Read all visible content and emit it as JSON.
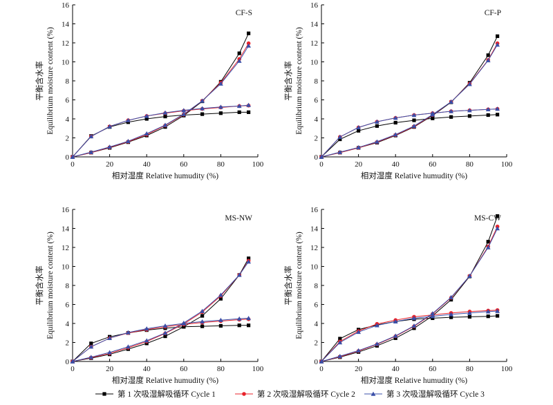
{
  "legend": {
    "items": [
      {
        "label": "第 1 次吸湿解吸循环 Cycle 1",
        "color": "#000000",
        "marker": "square"
      },
      {
        "label": "第 2 次吸湿解吸循环 Cycle 2",
        "color": "#e8222a",
        "marker": "circle"
      },
      {
        "label": "第 3 次吸湿解吸循环 Cycle 3",
        "color": "#3a4fa8",
        "marker": "triangle"
      }
    ]
  },
  "chart_data": [
    {
      "type": "line",
      "panel_label": "CF-S",
      "xlabel": "相对湿度 Relative humudity (%)",
      "ylabel_cn": "平衡含水率",
      "ylabel_en": "Equilibrium moisture content (%)",
      "xlim": [
        0,
        100
      ],
      "ylim": [
        0,
        16
      ],
      "xticks": [
        0,
        20,
        40,
        60,
        80,
        100
      ],
      "yticks": [
        0,
        2,
        4,
        6,
        8,
        10,
        12,
        14,
        16
      ],
      "x": [
        0,
        10,
        20,
        30,
        40,
        50,
        60,
        70,
        80,
        90,
        95
      ],
      "series": [
        {
          "name": "第 1 次吸湿解吸循环 Cycle 1",
          "branch": "adsorption",
          "values": [
            0,
            0.45,
            0.95,
            1.55,
            2.25,
            3.15,
            4.35,
            5.85,
            7.9,
            10.9,
            13.0
          ]
        },
        {
          "name": "第 1 次吸湿解吸循环 Cycle 1",
          "branch": "desorption",
          "values": [
            0,
            2.2,
            3.15,
            3.65,
            4.0,
            4.25,
            4.4,
            4.5,
            4.6,
            4.7,
            4.7
          ]
        },
        {
          "name": "第 2 次吸湿解吸循环 Cycle 2",
          "branch": "adsorption",
          "values": [
            0,
            0.45,
            1.0,
            1.6,
            2.35,
            3.3,
            4.45,
            5.9,
            7.8,
            10.3,
            11.95
          ]
        },
        {
          "name": "第 2 次吸湿解吸循环 Cycle 2",
          "branch": "desorption",
          "values": [
            0,
            2.15,
            3.2,
            3.85,
            4.3,
            4.6,
            4.85,
            5.05,
            5.2,
            5.35,
            5.4
          ]
        },
        {
          "name": "第 3 次吸湿解吸循环 Cycle 3",
          "branch": "adsorption",
          "values": [
            0,
            0.5,
            1.05,
            1.65,
            2.45,
            3.35,
            4.5,
            5.9,
            7.7,
            10.1,
            11.7
          ]
        },
        {
          "name": "第 3 次吸湿解吸循环 Cycle 3",
          "branch": "desorption",
          "values": [
            0,
            2.15,
            3.2,
            3.85,
            4.3,
            4.65,
            4.9,
            5.1,
            5.25,
            5.35,
            5.45
          ]
        }
      ]
    },
    {
      "type": "line",
      "panel_label": "CF-P",
      "xlabel": "相对湿度 Relative humudity (%)",
      "ylabel_cn": "平衡含水率",
      "ylabel_en": "Equilibrium moisture content (%)",
      "xlim": [
        0,
        100
      ],
      "ylim": [
        0,
        16
      ],
      "xticks": [
        0,
        20,
        40,
        60,
        80,
        100
      ],
      "yticks": [
        0,
        2,
        4,
        6,
        8,
        10,
        12,
        14,
        16
      ],
      "x": [
        0,
        10,
        20,
        30,
        40,
        50,
        60,
        70,
        80,
        90,
        95
      ],
      "series": [
        {
          "name": "第 1 次吸湿解吸循环 Cycle 1",
          "branch": "adsorption",
          "values": [
            0,
            0.45,
            0.95,
            1.5,
            2.25,
            3.15,
            4.35,
            5.75,
            7.8,
            10.7,
            12.7
          ]
        },
        {
          "name": "第 1 次吸湿解吸循环 Cycle 1",
          "branch": "desorption",
          "values": [
            0,
            1.85,
            2.75,
            3.25,
            3.6,
            3.85,
            4.05,
            4.2,
            4.3,
            4.4,
            4.45
          ]
        },
        {
          "name": "第 2 次吸湿解吸循环 Cycle 2",
          "branch": "adsorption",
          "values": [
            0,
            0.45,
            0.95,
            1.55,
            2.3,
            3.2,
            4.4,
            5.8,
            7.7,
            10.2,
            11.95
          ]
        },
        {
          "name": "第 2 次吸湿解吸循环 Cycle 2",
          "branch": "desorption",
          "values": [
            0,
            2.1,
            3.1,
            3.7,
            4.1,
            4.4,
            4.6,
            4.8,
            4.9,
            5.0,
            5.05
          ]
        },
        {
          "name": "第 3 次吸湿解吸循环 Cycle 3",
          "branch": "adsorption",
          "values": [
            0,
            0.5,
            1.0,
            1.6,
            2.35,
            3.25,
            4.45,
            5.8,
            7.65,
            10.15,
            11.8
          ]
        },
        {
          "name": "第 3 次吸湿解吸循环 Cycle 3",
          "branch": "desorption",
          "values": [
            0,
            2.1,
            3.1,
            3.7,
            4.1,
            4.4,
            4.6,
            4.8,
            4.9,
            5.0,
            5.05
          ]
        }
      ]
    },
    {
      "type": "line",
      "panel_label": "MS-NW",
      "xlabel": "相对湿度 Relative humudity (%)",
      "ylabel_cn": "平衡含水率",
      "ylabel_en": "Equilibrium moisture content (%)",
      "xlim": [
        0,
        100
      ],
      "ylim": [
        0,
        16
      ],
      "xticks": [
        0,
        20,
        40,
        60,
        80,
        100
      ],
      "yticks": [
        0,
        2,
        4,
        6,
        8,
        10,
        12,
        14,
        16
      ],
      "x": [
        0,
        10,
        20,
        30,
        40,
        50,
        60,
        70,
        80,
        90,
        95
      ],
      "series": [
        {
          "name": "第 1 次吸湿解吸循环 Cycle 1",
          "branch": "adsorption",
          "values": [
            0,
            0.35,
            0.75,
            1.3,
            1.9,
            2.65,
            3.65,
            4.8,
            6.6,
            9.1,
            10.85
          ]
        },
        {
          "name": "第 1 次吸湿解吸循环 Cycle 1",
          "branch": "desorption",
          "values": [
            0,
            1.9,
            2.6,
            3.0,
            3.3,
            3.5,
            3.65,
            3.7,
            3.75,
            3.8,
            3.8
          ]
        },
        {
          "name": "第 2 次吸湿解吸循环 Cycle 2",
          "branch": "adsorption",
          "values": [
            0,
            0.4,
            0.85,
            1.45,
            2.1,
            2.95,
            3.95,
            5.2,
            6.9,
            9.1,
            10.6
          ]
        },
        {
          "name": "第 2 次吸湿解吸循环 Cycle 2",
          "branch": "desorption",
          "values": [
            0,
            1.55,
            2.45,
            3.0,
            3.35,
            3.65,
            3.9,
            4.1,
            4.25,
            4.4,
            4.45
          ]
        },
        {
          "name": "第 3 次吸湿解吸循环 Cycle 3",
          "branch": "adsorption",
          "values": [
            0,
            0.45,
            0.95,
            1.55,
            2.2,
            3.0,
            4.05,
            5.3,
            7.0,
            9.1,
            10.5
          ]
        },
        {
          "name": "第 3 次吸湿解吸循环 Cycle 3",
          "branch": "desorption",
          "values": [
            0,
            1.55,
            2.45,
            3.05,
            3.45,
            3.75,
            4.0,
            4.2,
            4.35,
            4.5,
            4.55
          ]
        }
      ]
    },
    {
      "type": "line",
      "panel_label": "MS-CW",
      "xlabel": "相对湿度 Relative humudity (%)",
      "ylabel_cn": "平衡含水率",
      "ylabel_en": "Equilibrium moisture content (%)",
      "xlim": [
        0,
        100
      ],
      "ylim": [
        0,
        16
      ],
      "xticks": [
        0,
        20,
        40,
        60,
        80,
        100
      ],
      "yticks": [
        0,
        2,
        4,
        6,
        8,
        10,
        12,
        14,
        16
      ],
      "x": [
        0,
        10,
        20,
        30,
        40,
        50,
        60,
        70,
        80,
        90,
        95
      ],
      "series": [
        {
          "name": "第 1 次吸湿解吸循环 Cycle 1",
          "branch": "adsorption",
          "values": [
            0,
            0.45,
            1.0,
            1.65,
            2.45,
            3.5,
            4.8,
            6.5,
            8.95,
            12.6,
            15.3
          ]
        },
        {
          "name": "第 1 次吸湿解吸循环 Cycle 1",
          "branch": "desorption",
          "values": [
            0,
            2.4,
            3.35,
            3.85,
            4.2,
            4.45,
            4.55,
            4.65,
            4.7,
            4.75,
            4.8
          ]
        },
        {
          "name": "第 2 次吸湿解吸循环 Cycle 2",
          "branch": "adsorption",
          "values": [
            0,
            0.5,
            1.1,
            1.8,
            2.65,
            3.7,
            5.0,
            6.7,
            9.0,
            12.1,
            14.2
          ]
        },
        {
          "name": "第 2 次吸湿解吸循环 Cycle 2",
          "branch": "desorption",
          "values": [
            0,
            2.1,
            3.2,
            3.95,
            4.35,
            4.7,
            4.9,
            5.1,
            5.25,
            5.35,
            5.4
          ]
        },
        {
          "name": "第 3 次吸湿解吸循环 Cycle 3",
          "branch": "adsorption",
          "values": [
            0,
            0.55,
            1.15,
            1.85,
            2.7,
            3.75,
            5.05,
            6.75,
            9.0,
            12.0,
            14.0
          ]
        },
        {
          "name": "第 3 次吸湿解吸循环 Cycle 3",
          "branch": "desorption",
          "values": [
            0,
            2.0,
            3.1,
            3.8,
            4.2,
            4.55,
            4.75,
            4.95,
            5.1,
            5.25,
            5.3
          ]
        }
      ]
    }
  ]
}
